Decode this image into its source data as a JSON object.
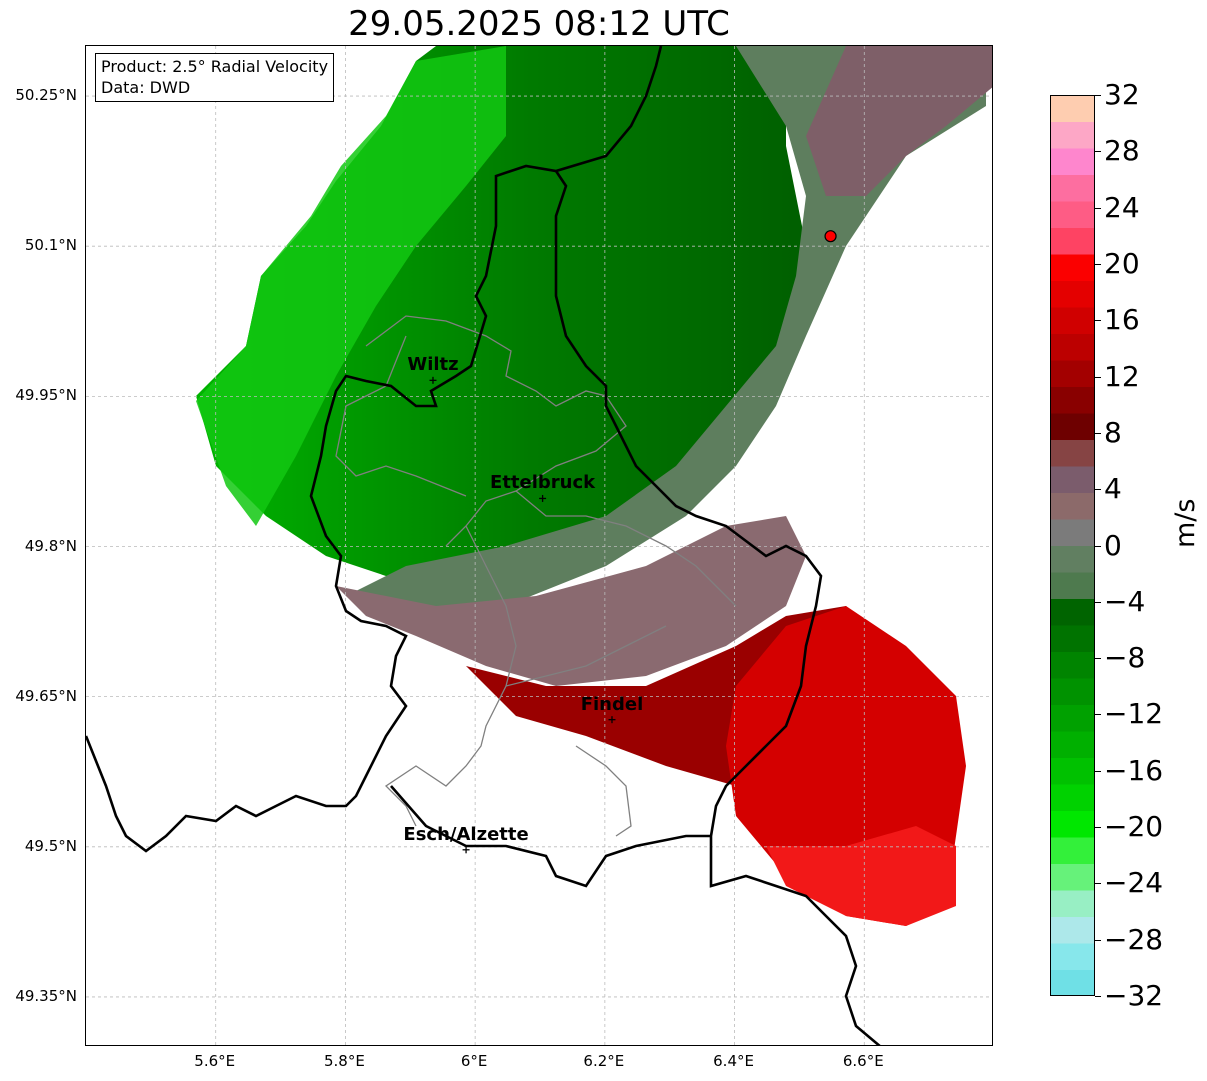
{
  "title": "29.05.2025 08:12 UTC",
  "info": {
    "product": "Product: 2.5° Radial Velocity",
    "source": "Data: DWD"
  },
  "places": [
    {
      "name": "Wiltz",
      "lon": 5.935,
      "lat": 49.966
    },
    {
      "name": "Ettelbruck",
      "lon": 6.104,
      "lat": 49.848
    },
    {
      "name": "Findel",
      "lon": 6.211,
      "lat": 49.627
    },
    {
      "name": "Esch/Alzette",
      "lon": 5.986,
      "lat": 49.497
    }
  ],
  "radar_site": {
    "lon": 6.548,
    "lat": 50.11
  },
  "axes": {
    "lat_ticks": [
      "50.25°N",
      "50.1°N",
      "49.95°N",
      "49.8°N",
      "49.65°N",
      "49.5°N",
      "49.35°N"
    ],
    "lat_values": [
      50.25,
      50.1,
      49.95,
      49.8,
      49.65,
      49.5,
      49.35
    ],
    "lon_ticks": [
      "5.6°E",
      "5.8°E",
      "6°E",
      "6.2°E",
      "6.4°E",
      "6.6°E"
    ],
    "lon_values": [
      5.6,
      5.8,
      6.0,
      6.2,
      6.4,
      6.6
    ],
    "lon_range": [
      5.4,
      6.8
    ],
    "lat_range": [
      49.3,
      50.3
    ],
    "grid": true
  },
  "colorbar": {
    "label": "m/s",
    "min": -32,
    "max": 32,
    "tick_labels": [
      "32",
      "28",
      "24",
      "20",
      "16",
      "12",
      "8",
      "4",
      "0",
      "−4",
      "−8",
      "−12",
      "−16",
      "−20",
      "−24",
      "−28",
      "−32"
    ],
    "colors_bottom_to_top": [
      "#6fe0e6",
      "#87e7eb",
      "#ade8ea",
      "#98efc4",
      "#66f27a",
      "#33f03a",
      "#00e700",
      "#00d200",
      "#00c100",
      "#00b000",
      "#00a100",
      "#009200",
      "#008400",
      "#007300",
      "#006400",
      "#4e7a4e",
      "#617f61",
      "#7b7b7b",
      "#8c6a6a",
      "#7b5c6c",
      "#864444",
      "#6e0000",
      "#890000",
      "#a30000",
      "#bc0000",
      "#d00000",
      "#e40000",
      "#fb0000",
      "#fe4363",
      "#fe5c85",
      "#fd6ea0",
      "#fe86cd",
      "#fda7c6",
      "#fecdb0"
    ]
  },
  "map_colors": {
    "border_country": "#000000",
    "border_canton": "#808080",
    "grid": "#bbbbbb"
  }
}
